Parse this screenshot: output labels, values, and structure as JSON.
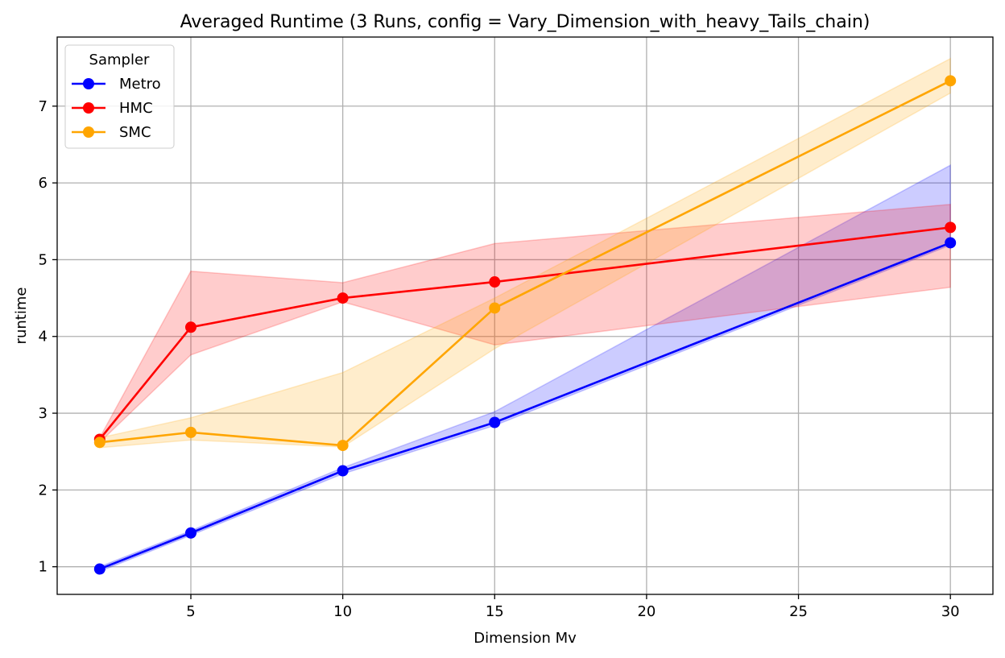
{
  "chart_data": {
    "type": "line",
    "title": "Averaged Runtime (3 Runs, config = Vary_Dimension_with_heavy_Tails_chain)",
    "xlabel": "Dimension Mv",
    "ylabel": "runtime",
    "x": [
      2,
      5,
      10,
      15,
      30
    ],
    "xlim": [
      0.6,
      31.4
    ],
    "ylim": [
      0.64,
      7.9
    ],
    "xticks": [
      5,
      10,
      15,
      20,
      25,
      30
    ],
    "yticks": [
      1,
      2,
      3,
      4,
      5,
      6,
      7
    ],
    "grid": true,
    "legend": {
      "title": "Sampler",
      "placement": "upper-left"
    },
    "series": [
      {
        "name": "Metro",
        "color": "#0000ff",
        "values": [
          0.97,
          1.44,
          2.25,
          2.88,
          5.22
        ],
        "band_upper": [
          1.0,
          1.47,
          2.29,
          3.02,
          6.23
        ],
        "band_lower": [
          0.94,
          1.41,
          2.21,
          2.84,
          5.19
        ]
      },
      {
        "name": "HMC",
        "color": "#ff0000",
        "values": [
          2.66,
          4.12,
          4.5,
          4.71,
          5.42
        ],
        "band_upper": [
          2.68,
          4.85,
          4.7,
          5.21,
          5.72
        ],
        "band_lower": [
          2.62,
          3.76,
          4.45,
          3.89,
          4.64
        ]
      },
      {
        "name": "SMC",
        "color": "#ffa500",
        "values": [
          2.62,
          2.75,
          2.58,
          4.37,
          7.33
        ],
        "band_upper": [
          2.68,
          2.94,
          3.53,
          4.5,
          7.62
        ],
        "band_lower": [
          2.55,
          2.65,
          2.56,
          3.84,
          7.17
        ]
      }
    ]
  }
}
